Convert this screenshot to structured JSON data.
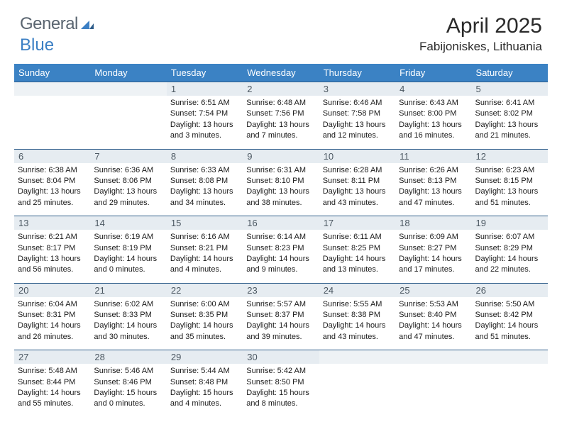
{
  "logo": {
    "general": "General",
    "blue": "Blue"
  },
  "title": "April 2025",
  "location": "Fabijoniskes, Lithuania",
  "dow": [
    "Sunday",
    "Monday",
    "Tuesday",
    "Wednesday",
    "Thursday",
    "Friday",
    "Saturday"
  ],
  "accent_color": "#3b82c4",
  "weeks": [
    [
      null,
      null,
      {
        "n": "1",
        "sr": "Sunrise: 6:51 AM",
        "ss": "Sunset: 7:54 PM",
        "d1": "Daylight: 13 hours",
        "d2": "and 3 minutes."
      },
      {
        "n": "2",
        "sr": "Sunrise: 6:48 AM",
        "ss": "Sunset: 7:56 PM",
        "d1": "Daylight: 13 hours",
        "d2": "and 7 minutes."
      },
      {
        "n": "3",
        "sr": "Sunrise: 6:46 AM",
        "ss": "Sunset: 7:58 PM",
        "d1": "Daylight: 13 hours",
        "d2": "and 12 minutes."
      },
      {
        "n": "4",
        "sr": "Sunrise: 6:43 AM",
        "ss": "Sunset: 8:00 PM",
        "d1": "Daylight: 13 hours",
        "d2": "and 16 minutes."
      },
      {
        "n": "5",
        "sr": "Sunrise: 6:41 AM",
        "ss": "Sunset: 8:02 PM",
        "d1": "Daylight: 13 hours",
        "d2": "and 21 minutes."
      }
    ],
    [
      {
        "n": "6",
        "sr": "Sunrise: 6:38 AM",
        "ss": "Sunset: 8:04 PM",
        "d1": "Daylight: 13 hours",
        "d2": "and 25 minutes."
      },
      {
        "n": "7",
        "sr": "Sunrise: 6:36 AM",
        "ss": "Sunset: 8:06 PM",
        "d1": "Daylight: 13 hours",
        "d2": "and 29 minutes."
      },
      {
        "n": "8",
        "sr": "Sunrise: 6:33 AM",
        "ss": "Sunset: 8:08 PM",
        "d1": "Daylight: 13 hours",
        "d2": "and 34 minutes."
      },
      {
        "n": "9",
        "sr": "Sunrise: 6:31 AM",
        "ss": "Sunset: 8:10 PM",
        "d1": "Daylight: 13 hours",
        "d2": "and 38 minutes."
      },
      {
        "n": "10",
        "sr": "Sunrise: 6:28 AM",
        "ss": "Sunset: 8:11 PM",
        "d1": "Daylight: 13 hours",
        "d2": "and 43 minutes."
      },
      {
        "n": "11",
        "sr": "Sunrise: 6:26 AM",
        "ss": "Sunset: 8:13 PM",
        "d1": "Daylight: 13 hours",
        "d2": "and 47 minutes."
      },
      {
        "n": "12",
        "sr": "Sunrise: 6:23 AM",
        "ss": "Sunset: 8:15 PM",
        "d1": "Daylight: 13 hours",
        "d2": "and 51 minutes."
      }
    ],
    [
      {
        "n": "13",
        "sr": "Sunrise: 6:21 AM",
        "ss": "Sunset: 8:17 PM",
        "d1": "Daylight: 13 hours",
        "d2": "and 56 minutes."
      },
      {
        "n": "14",
        "sr": "Sunrise: 6:19 AM",
        "ss": "Sunset: 8:19 PM",
        "d1": "Daylight: 14 hours",
        "d2": "and 0 minutes."
      },
      {
        "n": "15",
        "sr": "Sunrise: 6:16 AM",
        "ss": "Sunset: 8:21 PM",
        "d1": "Daylight: 14 hours",
        "d2": "and 4 minutes."
      },
      {
        "n": "16",
        "sr": "Sunrise: 6:14 AM",
        "ss": "Sunset: 8:23 PM",
        "d1": "Daylight: 14 hours",
        "d2": "and 9 minutes."
      },
      {
        "n": "17",
        "sr": "Sunrise: 6:11 AM",
        "ss": "Sunset: 8:25 PM",
        "d1": "Daylight: 14 hours",
        "d2": "and 13 minutes."
      },
      {
        "n": "18",
        "sr": "Sunrise: 6:09 AM",
        "ss": "Sunset: 8:27 PM",
        "d1": "Daylight: 14 hours",
        "d2": "and 17 minutes."
      },
      {
        "n": "19",
        "sr": "Sunrise: 6:07 AM",
        "ss": "Sunset: 8:29 PM",
        "d1": "Daylight: 14 hours",
        "d2": "and 22 minutes."
      }
    ],
    [
      {
        "n": "20",
        "sr": "Sunrise: 6:04 AM",
        "ss": "Sunset: 8:31 PM",
        "d1": "Daylight: 14 hours",
        "d2": "and 26 minutes."
      },
      {
        "n": "21",
        "sr": "Sunrise: 6:02 AM",
        "ss": "Sunset: 8:33 PM",
        "d1": "Daylight: 14 hours",
        "d2": "and 30 minutes."
      },
      {
        "n": "22",
        "sr": "Sunrise: 6:00 AM",
        "ss": "Sunset: 8:35 PM",
        "d1": "Daylight: 14 hours",
        "d2": "and 35 minutes."
      },
      {
        "n": "23",
        "sr": "Sunrise: 5:57 AM",
        "ss": "Sunset: 8:37 PM",
        "d1": "Daylight: 14 hours",
        "d2": "and 39 minutes."
      },
      {
        "n": "24",
        "sr": "Sunrise: 5:55 AM",
        "ss": "Sunset: 8:38 PM",
        "d1": "Daylight: 14 hours",
        "d2": "and 43 minutes."
      },
      {
        "n": "25",
        "sr": "Sunrise: 5:53 AM",
        "ss": "Sunset: 8:40 PM",
        "d1": "Daylight: 14 hours",
        "d2": "and 47 minutes."
      },
      {
        "n": "26",
        "sr": "Sunrise: 5:50 AM",
        "ss": "Sunset: 8:42 PM",
        "d1": "Daylight: 14 hours",
        "d2": "and 51 minutes."
      }
    ],
    [
      {
        "n": "27",
        "sr": "Sunrise: 5:48 AM",
        "ss": "Sunset: 8:44 PM",
        "d1": "Daylight: 14 hours",
        "d2": "and 55 minutes."
      },
      {
        "n": "28",
        "sr": "Sunrise: 5:46 AM",
        "ss": "Sunset: 8:46 PM",
        "d1": "Daylight: 15 hours",
        "d2": "and 0 minutes."
      },
      {
        "n": "29",
        "sr": "Sunrise: 5:44 AM",
        "ss": "Sunset: 8:48 PM",
        "d1": "Daylight: 15 hours",
        "d2": "and 4 minutes."
      },
      {
        "n": "30",
        "sr": "Sunrise: 5:42 AM",
        "ss": "Sunset: 8:50 PM",
        "d1": "Daylight: 15 hours",
        "d2": "and 8 minutes."
      },
      null,
      null,
      null
    ]
  ]
}
